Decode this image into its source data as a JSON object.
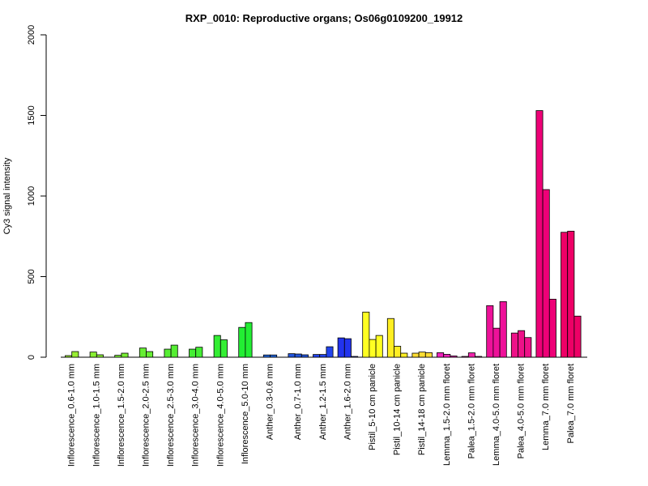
{
  "chart_data": {
    "type": "bar",
    "title": "RXP_0010: Reproductive organs; Os06g0109200_19912",
    "xlabel": "",
    "ylabel": "Cy3 signal intensity",
    "ylim": [
      0,
      2000
    ],
    "yticks": [
      0,
      500,
      1000,
      1500,
      2000
    ],
    "grid": false,
    "groups": [
      {
        "label": "Inflorescence_0.6-1.0 mm",
        "color": "#99ee33",
        "values": [
          10,
          35
        ]
      },
      {
        "label": "Inflorescence_1.0-1.5 mm",
        "color": "#88ee33",
        "values": [
          32,
          15
        ]
      },
      {
        "label": "Inflorescence_1.5-2.0 mm",
        "color": "#77ee33",
        "values": [
          12,
          25
        ]
      },
      {
        "label": "Inflorescence_2.0-2.5 mm",
        "color": "#66ee33",
        "values": [
          57,
          35
        ]
      },
      {
        "label": "Inflorescence_2.5-3.0 mm",
        "color": "#55ee33",
        "values": [
          50,
          75
        ]
      },
      {
        "label": "Inflorescence_3.0-4.0 mm",
        "color": "#44ee33",
        "values": [
          50,
          62
        ]
      },
      {
        "label": "Inflorescence_4.0-5.0 mm",
        "color": "#33ee33",
        "values": [
          135,
          108
        ]
      },
      {
        "label": "Inflorescence_5.0-10 mm",
        "color": "#22ee33",
        "values": [
          185,
          215
        ]
      },
      {
        "label": "Anther_0.3-0.6 mm",
        "color": "#2266dd",
        "values": [
          14,
          14
        ]
      },
      {
        "label": "Anther_0.7-1.0 mm",
        "color": "#2255dd",
        "values": [
          22,
          20,
          15
        ]
      },
      {
        "label": "Anther_1.2-1.5 mm",
        "color": "#2244ee",
        "values": [
          17,
          17,
          65
        ]
      },
      {
        "label": "Anther_1.6-2.0 mm",
        "color": "#2233ee",
        "values": [
          120,
          115,
          5
        ]
      },
      {
        "label": "Pistil_5-10 cm panicle",
        "color": "#ffff22",
        "values": [
          280,
          110,
          135
        ]
      },
      {
        "label": "Pistil_10-14 cm panicle",
        "color": "#ffee22",
        "values": [
          240,
          68,
          25
        ]
      },
      {
        "label": "Pistil_14-18 cm panicle",
        "color": "#ffdd33",
        "values": [
          25,
          32,
          28
        ]
      },
      {
        "label": "Lemma_1.5-2.0 mm floret",
        "color": "#ee22bb",
        "values": [
          28,
          18,
          8
        ]
      },
      {
        "label": "Palea_1.5-2.0 mm floret",
        "color": "#ee22aa",
        "values": [
          5,
          27,
          5
        ]
      },
      {
        "label": "Lemma_4.0-5.0 mm floret",
        "color": "#ee1199",
        "values": [
          320,
          180,
          345
        ]
      },
      {
        "label": "Palea_4.0-5.0 mm floret",
        "color": "#ee1188",
        "values": [
          150,
          165,
          122
        ]
      },
      {
        "label": "Lemma_7.0 mm floret",
        "color": "#ee0077",
        "values": [
          1530,
          1040,
          360
        ]
      },
      {
        "label": "Palea_7.0 mm floret",
        "color": "#ee0066",
        "values": [
          775,
          782,
          255
        ]
      }
    ]
  }
}
